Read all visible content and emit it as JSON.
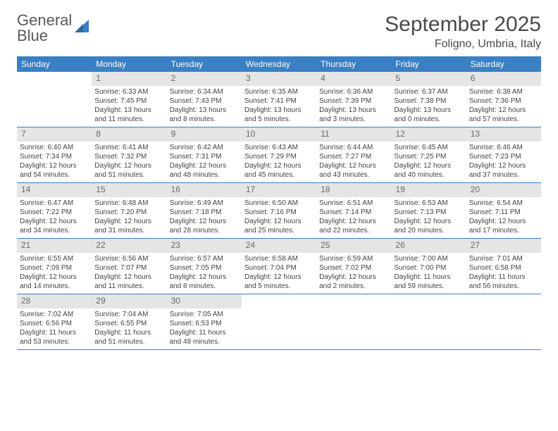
{
  "brand": {
    "line1": "General",
    "line2": "Blue",
    "text_color": "#5a5a5a",
    "accent_color": "#3b7fc4"
  },
  "header": {
    "title": "September 2025",
    "location": "Foligno, Umbria, Italy"
  },
  "colors": {
    "header_bg": "#3b7fc4",
    "header_text": "#ffffff",
    "daynum_bg": "#e5e5e5",
    "daynum_text": "#6a6a6a",
    "body_text": "#444444",
    "border": "#3b7fc4"
  },
  "days_of_week": [
    "Sunday",
    "Monday",
    "Tuesday",
    "Wednesday",
    "Thursday",
    "Friday",
    "Saturday"
  ],
  "weeks": [
    [
      {
        "n": "",
        "sr": "",
        "ss": "",
        "dl": ""
      },
      {
        "n": "1",
        "sr": "Sunrise: 6:33 AM",
        "ss": "Sunset: 7:45 PM",
        "dl": "Daylight: 13 hours and 11 minutes."
      },
      {
        "n": "2",
        "sr": "Sunrise: 6:34 AM",
        "ss": "Sunset: 7:43 PM",
        "dl": "Daylight: 13 hours and 8 minutes."
      },
      {
        "n": "3",
        "sr": "Sunrise: 6:35 AM",
        "ss": "Sunset: 7:41 PM",
        "dl": "Daylight: 13 hours and 5 minutes."
      },
      {
        "n": "4",
        "sr": "Sunrise: 6:36 AM",
        "ss": "Sunset: 7:39 PM",
        "dl": "Daylight: 13 hours and 3 minutes."
      },
      {
        "n": "5",
        "sr": "Sunrise: 6:37 AM",
        "ss": "Sunset: 7:38 PM",
        "dl": "Daylight: 13 hours and 0 minutes."
      },
      {
        "n": "6",
        "sr": "Sunrise: 6:38 AM",
        "ss": "Sunset: 7:36 PM",
        "dl": "Daylight: 12 hours and 57 minutes."
      }
    ],
    [
      {
        "n": "7",
        "sr": "Sunrise: 6:40 AM",
        "ss": "Sunset: 7:34 PM",
        "dl": "Daylight: 12 hours and 54 minutes."
      },
      {
        "n": "8",
        "sr": "Sunrise: 6:41 AM",
        "ss": "Sunset: 7:32 PM",
        "dl": "Daylight: 12 hours and 51 minutes."
      },
      {
        "n": "9",
        "sr": "Sunrise: 6:42 AM",
        "ss": "Sunset: 7:31 PM",
        "dl": "Daylight: 12 hours and 48 minutes."
      },
      {
        "n": "10",
        "sr": "Sunrise: 6:43 AM",
        "ss": "Sunset: 7:29 PM",
        "dl": "Daylight: 12 hours and 45 minutes."
      },
      {
        "n": "11",
        "sr": "Sunrise: 6:44 AM",
        "ss": "Sunset: 7:27 PM",
        "dl": "Daylight: 12 hours and 43 minutes."
      },
      {
        "n": "12",
        "sr": "Sunrise: 6:45 AM",
        "ss": "Sunset: 7:25 PM",
        "dl": "Daylight: 12 hours and 40 minutes."
      },
      {
        "n": "13",
        "sr": "Sunrise: 6:46 AM",
        "ss": "Sunset: 7:23 PM",
        "dl": "Daylight: 12 hours and 37 minutes."
      }
    ],
    [
      {
        "n": "14",
        "sr": "Sunrise: 6:47 AM",
        "ss": "Sunset: 7:22 PM",
        "dl": "Daylight: 12 hours and 34 minutes."
      },
      {
        "n": "15",
        "sr": "Sunrise: 6:48 AM",
        "ss": "Sunset: 7:20 PM",
        "dl": "Daylight: 12 hours and 31 minutes."
      },
      {
        "n": "16",
        "sr": "Sunrise: 6:49 AM",
        "ss": "Sunset: 7:18 PM",
        "dl": "Daylight: 12 hours and 28 minutes."
      },
      {
        "n": "17",
        "sr": "Sunrise: 6:50 AM",
        "ss": "Sunset: 7:16 PM",
        "dl": "Daylight: 12 hours and 25 minutes."
      },
      {
        "n": "18",
        "sr": "Sunrise: 6:51 AM",
        "ss": "Sunset: 7:14 PM",
        "dl": "Daylight: 12 hours and 22 minutes."
      },
      {
        "n": "19",
        "sr": "Sunrise: 6:53 AM",
        "ss": "Sunset: 7:13 PM",
        "dl": "Daylight: 12 hours and 20 minutes."
      },
      {
        "n": "20",
        "sr": "Sunrise: 6:54 AM",
        "ss": "Sunset: 7:11 PM",
        "dl": "Daylight: 12 hours and 17 minutes."
      }
    ],
    [
      {
        "n": "21",
        "sr": "Sunrise: 6:55 AM",
        "ss": "Sunset: 7:09 PM",
        "dl": "Daylight: 12 hours and 14 minutes."
      },
      {
        "n": "22",
        "sr": "Sunrise: 6:56 AM",
        "ss": "Sunset: 7:07 PM",
        "dl": "Daylight: 12 hours and 11 minutes."
      },
      {
        "n": "23",
        "sr": "Sunrise: 6:57 AM",
        "ss": "Sunset: 7:05 PM",
        "dl": "Daylight: 12 hours and 8 minutes."
      },
      {
        "n": "24",
        "sr": "Sunrise: 6:58 AM",
        "ss": "Sunset: 7:04 PM",
        "dl": "Daylight: 12 hours and 5 minutes."
      },
      {
        "n": "25",
        "sr": "Sunrise: 6:59 AM",
        "ss": "Sunset: 7:02 PM",
        "dl": "Daylight: 12 hours and 2 minutes."
      },
      {
        "n": "26",
        "sr": "Sunrise: 7:00 AM",
        "ss": "Sunset: 7:00 PM",
        "dl": "Daylight: 11 hours and 59 minutes."
      },
      {
        "n": "27",
        "sr": "Sunrise: 7:01 AM",
        "ss": "Sunset: 6:58 PM",
        "dl": "Daylight: 11 hours and 56 minutes."
      }
    ],
    [
      {
        "n": "28",
        "sr": "Sunrise: 7:02 AM",
        "ss": "Sunset: 6:56 PM",
        "dl": "Daylight: 11 hours and 53 minutes."
      },
      {
        "n": "29",
        "sr": "Sunrise: 7:04 AM",
        "ss": "Sunset: 6:55 PM",
        "dl": "Daylight: 11 hours and 51 minutes."
      },
      {
        "n": "30",
        "sr": "Sunrise: 7:05 AM",
        "ss": "Sunset: 6:53 PM",
        "dl": "Daylight: 11 hours and 48 minutes."
      },
      {
        "n": "",
        "sr": "",
        "ss": "",
        "dl": ""
      },
      {
        "n": "",
        "sr": "",
        "ss": "",
        "dl": ""
      },
      {
        "n": "",
        "sr": "",
        "ss": "",
        "dl": ""
      },
      {
        "n": "",
        "sr": "",
        "ss": "",
        "dl": ""
      }
    ]
  ]
}
